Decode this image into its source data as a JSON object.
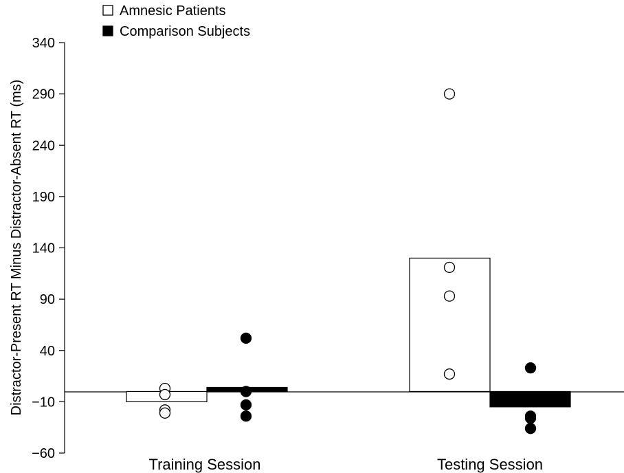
{
  "chart_data": {
    "type": "bar",
    "categories": [
      "Training Session",
      "Testing Session"
    ],
    "ylabel": "Distractor-Present RT Minus Distractor-Absent RT (ms)",
    "ylim": [
      -60,
      340
    ],
    "yticks": [
      340,
      290,
      240,
      190,
      140,
      90,
      40,
      -10,
      -60
    ],
    "ytick_labels": [
      "340",
      "290",
      "240",
      "190",
      "140",
      "90",
      "40",
      "−10",
      "−60"
    ],
    "baseline": 0,
    "legend": {
      "placement": "top-left"
    },
    "series": [
      {
        "name": "Amnesic Patients",
        "fill": "#ffffff",
        "values": [
          -10,
          130
        ],
        "points": [
          [
            3,
            -3,
            -18,
            -21
          ],
          [
            290,
            121,
            93,
            17
          ]
        ]
      },
      {
        "name": "Comparison Subjects",
        "fill": "#000000",
        "values": [
          4,
          -15
        ],
        "points": [
          [
            52,
            0,
            -13,
            -24
          ],
          [
            23,
            -24,
            -26,
            -36
          ]
        ]
      }
    ]
  }
}
